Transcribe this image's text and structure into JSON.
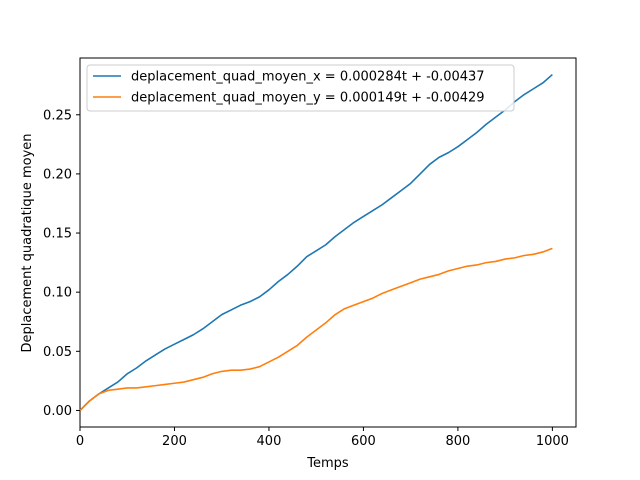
{
  "chart_data": {
    "type": "line",
    "title": "",
    "xlabel": "Temps",
    "ylabel": "Deplacement quadratique moyen",
    "xlim": [
      0,
      1050
    ],
    "ylim": [
      -0.014,
      0.298
    ],
    "xticks": [
      0,
      200,
      400,
      600,
      800,
      1000
    ],
    "xtick_labels": [
      "0",
      "200",
      "400",
      "600",
      "800",
      "1000"
    ],
    "yticks": [
      0.0,
      0.05,
      0.1,
      0.15,
      0.2,
      0.25
    ],
    "ytick_labels": [
      "0.00",
      "0.05",
      "0.10",
      "0.15",
      "0.20",
      "0.25"
    ],
    "grid": false,
    "legend_position": "upper-left",
    "series": [
      {
        "name": "deplacement_quad_moyen_x = 0.000284t + -0.00437",
        "color": "#1f77b4",
        "x": [
          0,
          20,
          40,
          60,
          80,
          100,
          120,
          140,
          160,
          180,
          200,
          220,
          240,
          260,
          280,
          300,
          320,
          340,
          360,
          380,
          400,
          420,
          440,
          460,
          480,
          500,
          520,
          540,
          560,
          580,
          600,
          620,
          640,
          660,
          680,
          700,
          720,
          740,
          760,
          780,
          800,
          820,
          840,
          860,
          880,
          900,
          920,
          940,
          960,
          980,
          1000
        ],
        "values": [
          0.0,
          0.008,
          0.014,
          0.019,
          0.024,
          0.031,
          0.036,
          0.042,
          0.047,
          0.052,
          0.056,
          0.06,
          0.064,
          0.069,
          0.075,
          0.081,
          0.085,
          0.089,
          0.092,
          0.096,
          0.102,
          0.109,
          0.115,
          0.122,
          0.13,
          0.135,
          0.14,
          0.147,
          0.153,
          0.159,
          0.164,
          0.169,
          0.174,
          0.18,
          0.186,
          0.192,
          0.2,
          0.208,
          0.214,
          0.218,
          0.223,
          0.229,
          0.235,
          0.242,
          0.248,
          0.254,
          0.261,
          0.267,
          0.272,
          0.277,
          0.284
        ]
      },
      {
        "name": "deplacement_quad_moyen_y = 0.000149t + -0.00429",
        "color": "#ff7f0e",
        "x": [
          0,
          20,
          40,
          60,
          80,
          100,
          120,
          140,
          160,
          180,
          200,
          220,
          240,
          260,
          280,
          300,
          320,
          340,
          360,
          380,
          400,
          420,
          440,
          460,
          480,
          500,
          520,
          540,
          560,
          580,
          600,
          620,
          640,
          660,
          680,
          700,
          720,
          740,
          760,
          780,
          800,
          820,
          840,
          860,
          880,
          900,
          920,
          940,
          960,
          980,
          1000
        ],
        "values": [
          0.0,
          0.008,
          0.014,
          0.017,
          0.018,
          0.019,
          0.019,
          0.02,
          0.021,
          0.022,
          0.023,
          0.024,
          0.026,
          0.028,
          0.031,
          0.033,
          0.034,
          0.034,
          0.035,
          0.037,
          0.041,
          0.045,
          0.05,
          0.055,
          0.062,
          0.068,
          0.074,
          0.081,
          0.086,
          0.089,
          0.092,
          0.095,
          0.099,
          0.102,
          0.105,
          0.108,
          0.111,
          0.113,
          0.115,
          0.118,
          0.12,
          0.122,
          0.123,
          0.125,
          0.126,
          0.128,
          0.129,
          0.131,
          0.132,
          0.134,
          0.137
        ]
      }
    ]
  }
}
